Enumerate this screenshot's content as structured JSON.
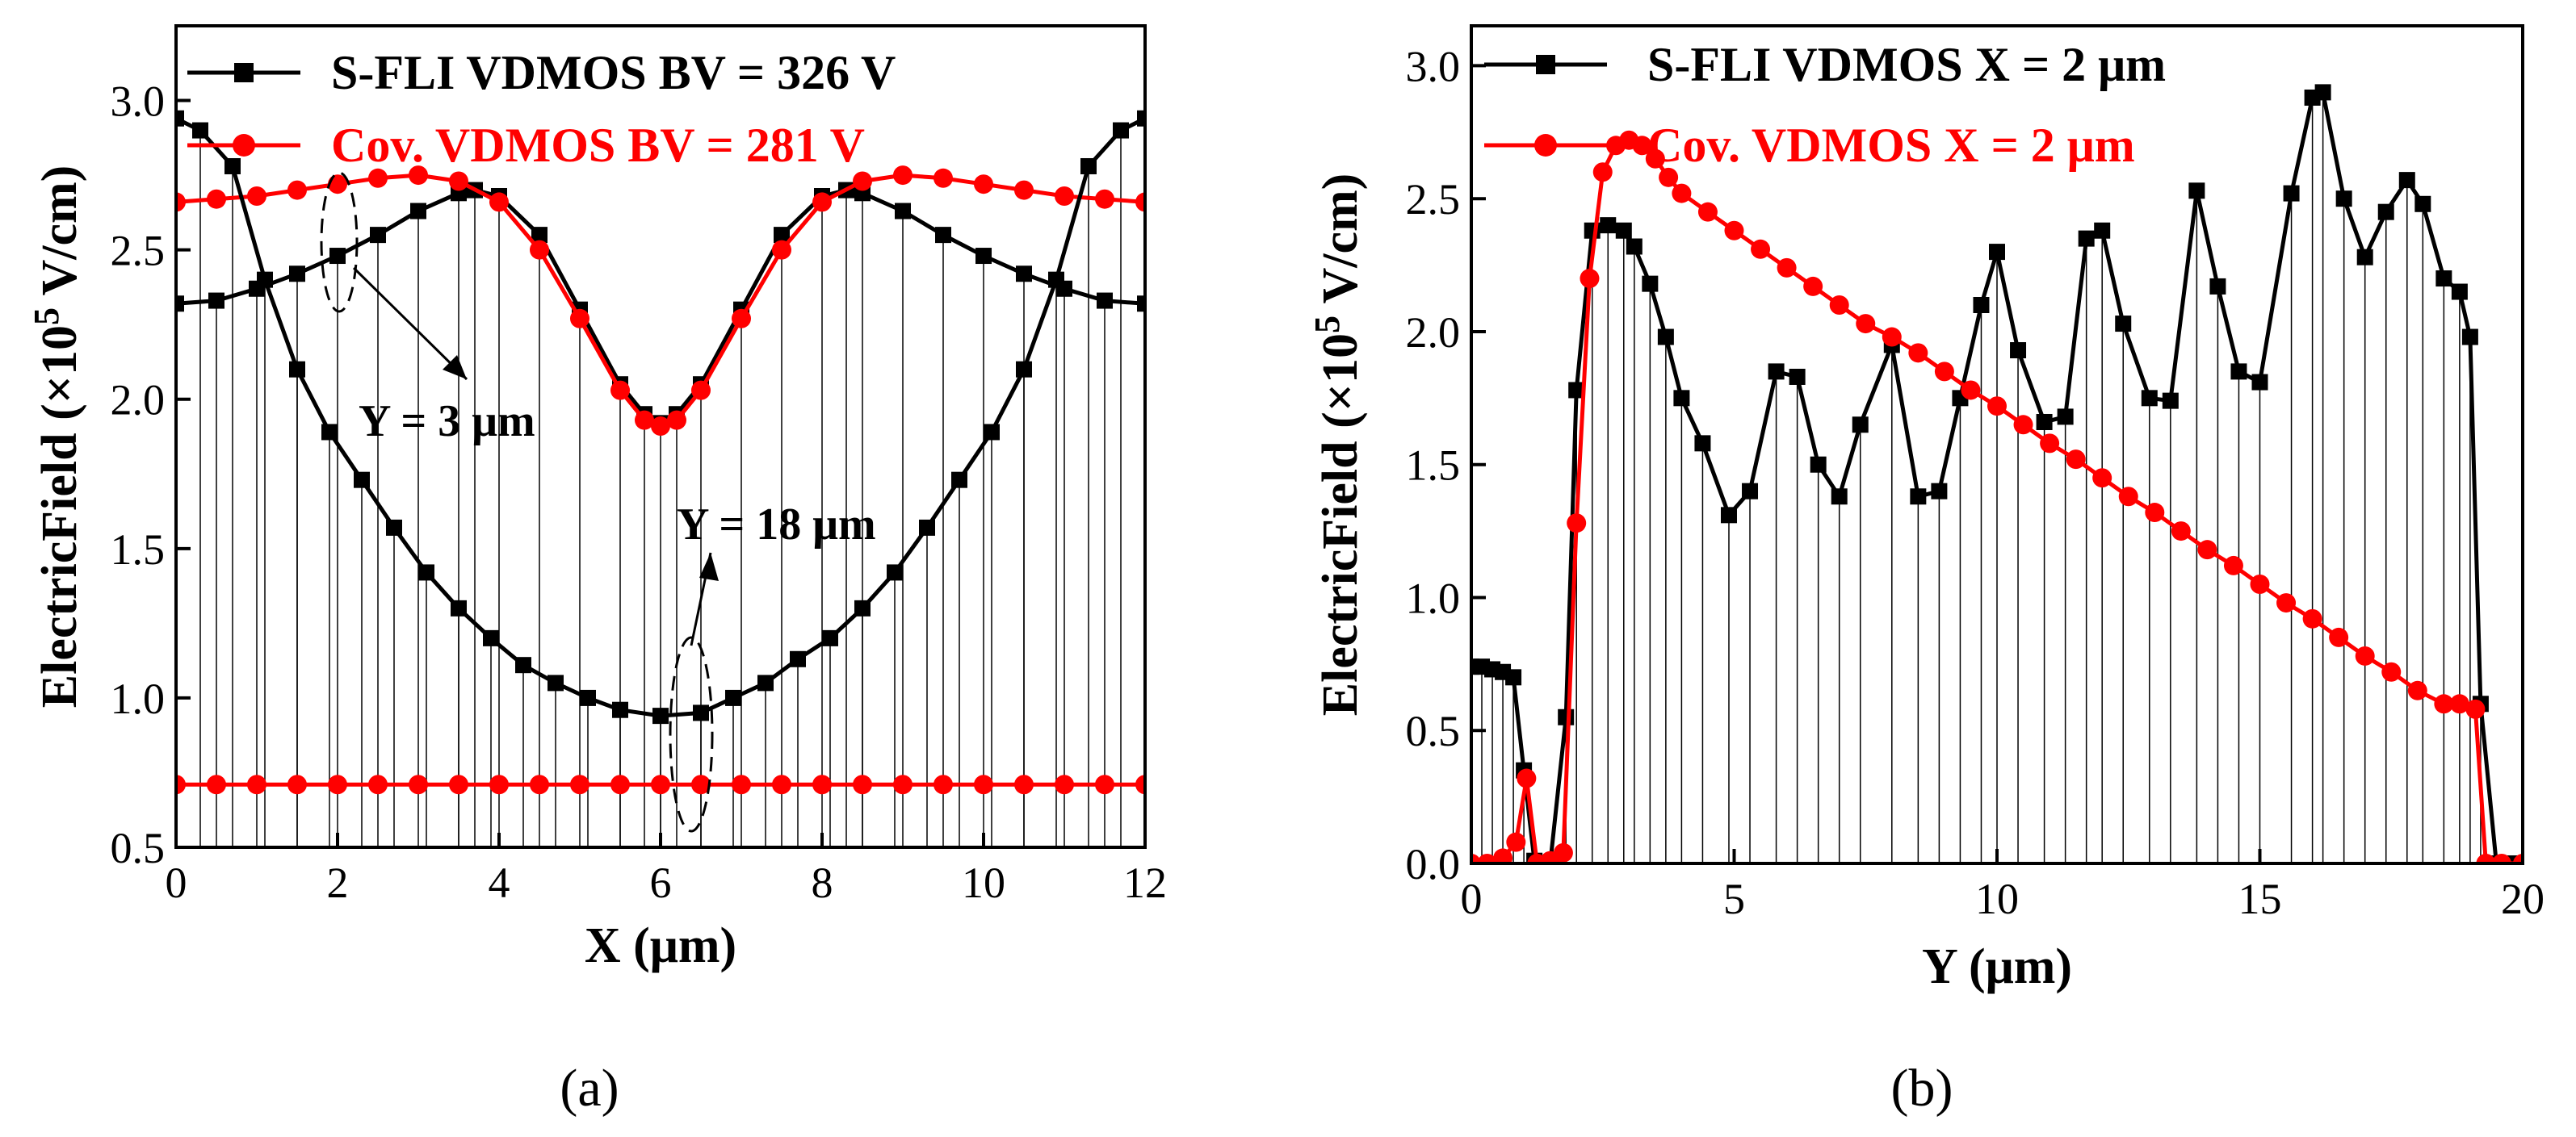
{
  "captions": {
    "a": "(a)",
    "b": "(b)"
  },
  "colors": {
    "black": "#000000",
    "red": "#ff0000"
  },
  "chart_data": [
    {
      "type": "line",
      "panel": "a",
      "xlabel": "X (μm)",
      "ylabel_main": "ElectricField (×10",
      "ylabel_exp": "5",
      "ylabel_unit": " V/cm)",
      "xlim": [
        0,
        12
      ],
      "ylim": [
        0.5,
        3.25
      ],
      "xticks": [
        0,
        2,
        4,
        6,
        8,
        10,
        12
      ],
      "xtick_labels": [
        "0",
        "2",
        "4",
        "6",
        "8",
        "10",
        "12"
      ],
      "yticks": [
        0.5,
        1.0,
        1.5,
        2.0,
        2.5,
        3.0
      ],
      "ytick_labels": [
        "0.5",
        "1.0",
        "1.5",
        "2.0",
        "2.5",
        "3.0"
      ],
      "legend": [
        {
          "label": "S-FLI VDMOS  BV = 326 V",
          "color": "#000000",
          "marker": "square"
        },
        {
          "label": "Cov. VDMOS  BV = 281 V",
          "color": "#ff0000",
          "marker": "circle"
        }
      ],
      "annotations": [
        "Y = 3 μm",
        "Y = 18 μm"
      ],
      "series": [
        {
          "name": "S-FLI VDMOS Y = 3 μm",
          "color": "#000000",
          "marker": "square",
          "x": [
            0,
            0.5,
            1,
            1.5,
            2,
            2.5,
            3,
            3.5,
            3.7,
            4,
            4.5,
            5,
            5.5,
            5.8,
            6,
            6.2,
            6.5,
            7,
            7.5,
            8,
            8.3,
            8.5,
            9,
            9.5,
            10,
            10.5,
            11,
            11.5,
            12
          ],
          "y": [
            2.32,
            2.33,
            2.37,
            2.42,
            2.48,
            2.55,
            2.63,
            2.69,
            2.7,
            2.68,
            2.55,
            2.3,
            2.05,
            1.95,
            1.92,
            1.95,
            2.05,
            2.3,
            2.55,
            2.68,
            2.7,
            2.69,
            2.63,
            2.55,
            2.48,
            2.42,
            2.37,
            2.33,
            2.32
          ]
        },
        {
          "name": "Cov. VDMOS Y = 3 μm",
          "color": "#ff0000",
          "marker": "circle",
          "x": [
            0,
            0.5,
            1,
            1.5,
            2,
            2.5,
            3,
            3.5,
            4,
            4.5,
            5,
            5.5,
            5.8,
            6,
            6.2,
            6.5,
            7,
            7.5,
            8,
            8.5,
            9,
            9.5,
            10,
            10.5,
            11,
            11.5,
            12
          ],
          "y": [
            2.66,
            2.67,
            2.68,
            2.7,
            2.72,
            2.74,
            2.75,
            2.73,
            2.66,
            2.5,
            2.27,
            2.03,
            1.93,
            1.91,
            1.93,
            2.03,
            2.27,
            2.5,
            2.66,
            2.73,
            2.75,
            2.74,
            2.72,
            2.7,
            2.68,
            2.67,
            2.66
          ]
        },
        {
          "name": "S-FLI VDMOS Y = 18 μm",
          "color": "#000000",
          "marker": "square",
          "x": [
            0,
            0.3,
            0.7,
            1.1,
            1.5,
            1.9,
            2.3,
            2.7,
            3.1,
            3.5,
            3.9,
            4.3,
            4.7,
            5.1,
            5.5,
            6.0,
            6.5,
            6.9,
            7.3,
            7.7,
            8.1,
            8.5,
            8.9,
            9.3,
            9.7,
            10.1,
            10.5,
            10.9,
            11.3,
            11.7,
            12
          ],
          "y": [
            2.94,
            2.9,
            2.78,
            2.4,
            2.1,
            1.89,
            1.73,
            1.57,
            1.42,
            1.3,
            1.2,
            1.11,
            1.05,
            1.0,
            0.96,
            0.94,
            0.95,
            1.0,
            1.05,
            1.13,
            1.2,
            1.3,
            1.42,
            1.57,
            1.73,
            1.89,
            2.1,
            2.4,
            2.78,
            2.9,
            2.94
          ]
        },
        {
          "name": "Cov. VDMOS Y = 18 μm",
          "color": "#ff0000",
          "marker": "circle",
          "x": [
            0,
            0.5,
            1,
            1.5,
            2,
            2.5,
            3,
            3.5,
            4,
            4.5,
            5,
            5.5,
            6,
            6.5,
            7,
            7.5,
            8,
            8.5,
            9,
            9.5,
            10,
            10.5,
            11,
            11.5,
            12
          ],
          "y": [
            0.71,
            0.71,
            0.71,
            0.71,
            0.71,
            0.71,
            0.71,
            0.71,
            0.71,
            0.71,
            0.71,
            0.71,
            0.71,
            0.71,
            0.71,
            0.71,
            0.71,
            0.71,
            0.71,
            0.71,
            0.71,
            0.71,
            0.71,
            0.71,
            0.71
          ]
        }
      ]
    },
    {
      "type": "line",
      "panel": "b",
      "xlabel": "Y (μm)",
      "ylabel_main": "ElectricField (×10",
      "ylabel_exp": "5",
      "ylabel_unit": " V/cm)",
      "xlim": [
        0,
        20
      ],
      "ylim": [
        0,
        3.15
      ],
      "xticks": [
        0,
        5,
        10,
        15,
        20
      ],
      "xtick_labels": [
        "0",
        "5",
        "10",
        "15",
        "20"
      ],
      "yticks": [
        0,
        0.5,
        1.0,
        1.5,
        2.0,
        2.5,
        3.0
      ],
      "ytick_labels": [
        "0.0",
        "0.5",
        "1.0",
        "1.5",
        "2.0",
        "2.5",
        "3.0"
      ],
      "legend": [
        {
          "label": "S-FLI VDMOS  X = 2 μm",
          "color": "#000000",
          "marker": "square"
        },
        {
          "label": "Cov. VDMOS  X = 2 μm",
          "color": "#ff0000",
          "marker": "circle"
        }
      ],
      "series": [
        {
          "name": "S-FLI VDMOS X = 2 μm",
          "color": "#000000",
          "marker": "square",
          "x": [
            0,
            0.2,
            0.4,
            0.6,
            0.8,
            1.0,
            1.2,
            1.5,
            1.8,
            2.0,
            2.3,
            2.6,
            2.9,
            3.1,
            3.4,
            3.7,
            4.0,
            4.4,
            4.9,
            5.3,
            5.8,
            6.2,
            6.6,
            7.0,
            7.4,
            8.0,
            8.5,
            8.9,
            9.3,
            9.7,
            10.0,
            10.4,
            10.9,
            11.3,
            11.7,
            12.0,
            12.4,
            12.9,
            13.3,
            13.8,
            14.2,
            14.6,
            15.0,
            15.6,
            16.0,
            16.2,
            16.6,
            17.0,
            17.4,
            17.8,
            18.1,
            18.5,
            18.8,
            19.0,
            19.2,
            19.5,
            19.8,
            20
          ],
          "y": [
            0.74,
            0.74,
            0.73,
            0.72,
            0.7,
            0.35,
            0.01,
            0.0,
            0.55,
            1.78,
            2.38,
            2.4,
            2.38,
            2.32,
            2.18,
            1.98,
            1.75,
            1.58,
            1.31,
            1.4,
            1.85,
            1.83,
            1.5,
            1.38,
            1.65,
            1.95,
            1.38,
            1.4,
            1.75,
            2.1,
            2.3,
            1.93,
            1.66,
            1.68,
            2.35,
            2.38,
            2.03,
            1.75,
            1.74,
            2.53,
            2.17,
            1.85,
            1.81,
            2.52,
            2.88,
            2.9,
            2.5,
            2.28,
            2.45,
            2.57,
            2.48,
            2.2,
            2.15,
            1.98,
            0.6,
            0.0,
            0.0,
            0.0
          ]
        },
        {
          "name": "Cov. VDMOS X = 2 μm",
          "color": "#ff0000",
          "marker": "circle",
          "x": [
            0,
            0.3,
            0.6,
            0.85,
            1.05,
            1.25,
            1.5,
            1.75,
            2.0,
            2.25,
            2.5,
            2.75,
            3.0,
            3.25,
            3.5,
            3.75,
            4.0,
            4.5,
            5.0,
            5.5,
            6.0,
            6.5,
            7.0,
            7.5,
            8.0,
            8.5,
            9.0,
            9.5,
            10.0,
            10.5,
            11.0,
            11.5,
            12.0,
            12.5,
            13.0,
            13.5,
            14.0,
            14.5,
            15.0,
            15.5,
            16.0,
            16.5,
            17.0,
            17.5,
            18.0,
            18.5,
            18.8,
            19.1,
            19.3,
            19.6,
            20
          ],
          "y": [
            0.0,
            0.0,
            0.02,
            0.08,
            0.32,
            0.0,
            0.01,
            0.04,
            1.28,
            2.2,
            2.6,
            2.7,
            2.72,
            2.7,
            2.65,
            2.58,
            2.52,
            2.45,
            2.38,
            2.31,
            2.24,
            2.17,
            2.1,
            2.03,
            1.98,
            1.92,
            1.85,
            1.78,
            1.72,
            1.65,
            1.58,
            1.52,
            1.45,
            1.38,
            1.32,
            1.25,
            1.18,
            1.12,
            1.05,
            0.98,
            0.92,
            0.85,
            0.78,
            0.72,
            0.65,
            0.6,
            0.6,
            0.58,
            0.0,
            0.0,
            0.0
          ]
        }
      ]
    }
  ]
}
